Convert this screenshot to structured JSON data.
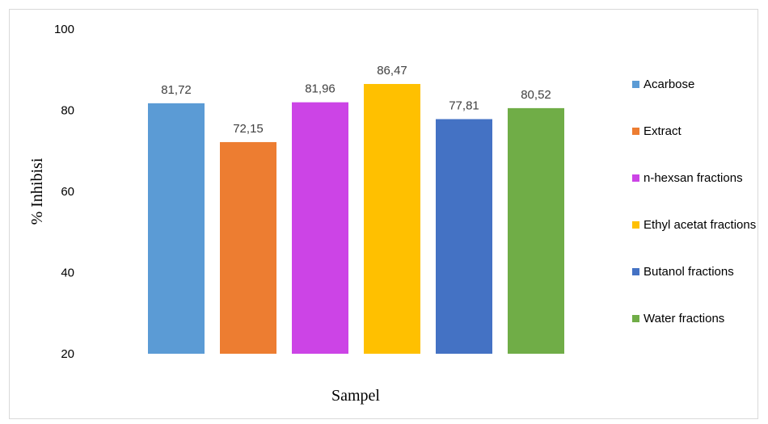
{
  "chart_data": {
    "type": "bar",
    "xlabel": "Sampel",
    "ylabel": "% Inhibisi",
    "ylim": [
      20,
      100
    ],
    "yticks": [
      20,
      40,
      60,
      80,
      100
    ],
    "grid": false,
    "legend_position": "right",
    "series": [
      {
        "name": "Acarbose",
        "value": 81.72,
        "label": "81,72",
        "color": "#5b9bd5"
      },
      {
        "name": "Extract",
        "value": 72.15,
        "label": "72,15",
        "color": "#ed7d31"
      },
      {
        "name": "n-hexsan fractions",
        "value": 81.96,
        "label": "81,96",
        "color": "#cc44e6"
      },
      {
        "name": "Ethyl acetat fractions",
        "value": 86.47,
        "label": "86,47",
        "color": "#ffc000"
      },
      {
        "name": "Butanol fractions",
        "value": 77.81,
        "label": "77,81",
        "color": "#4472c4"
      },
      {
        "name": "Water fractions",
        "value": 80.52,
        "label": "80,52",
        "color": "#70ad47"
      }
    ]
  }
}
